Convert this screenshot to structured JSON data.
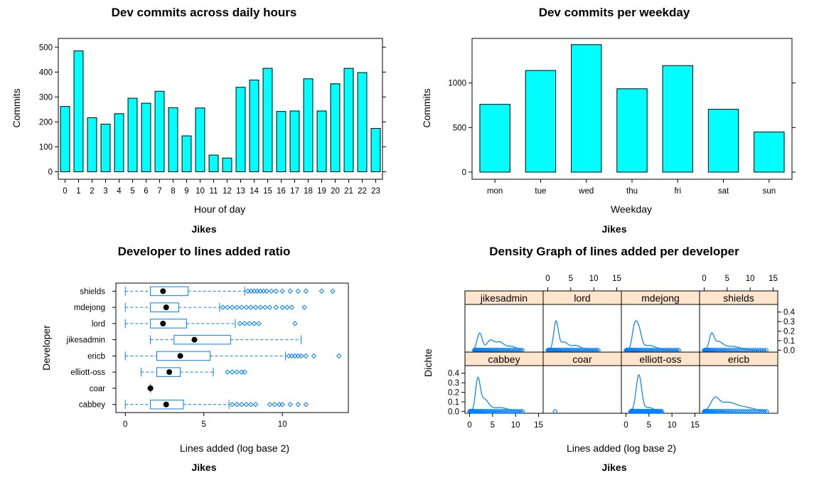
{
  "chart_data": [
    {
      "type": "bar",
      "title": "Dev commits across daily hours",
      "xlabel": "Hour of day",
      "ylabel": "Commits",
      "subtitle": "Jikes",
      "categories": [
        "0",
        "1",
        "2",
        "3",
        "4",
        "5",
        "6",
        "7",
        "8",
        "9",
        "10",
        "11",
        "12",
        "13",
        "14",
        "15",
        "16",
        "17",
        "18",
        "19",
        "20",
        "21",
        "22",
        "23"
      ],
      "values": [
        262,
        485,
        217,
        191,
        233,
        295,
        275,
        323,
        257,
        144,
        256,
        67,
        55,
        339,
        368,
        415,
        242,
        244,
        373,
        244,
        353,
        415,
        398,
        174
      ],
      "yticks": [
        0,
        100,
        200,
        300,
        400,
        500
      ],
      "ylim": [
        -30,
        535
      ],
      "color": "#00ffff"
    },
    {
      "type": "bar",
      "title": "Dev commits per weekday",
      "xlabel": "Weekday",
      "ylabel": "Commits",
      "subtitle": "Jikes",
      "categories": [
        "mon",
        "tue",
        "wed",
        "thu",
        "fri",
        "sat",
        "sun"
      ],
      "values": [
        760,
        1140,
        1430,
        935,
        1195,
        705,
        450
      ],
      "yticks": [
        0,
        500,
        1000
      ],
      "ylim": [
        -80,
        1500
      ],
      "color": "#00ffff"
    },
    {
      "type": "box",
      "title": "Developer to lines added ratio",
      "xlabel": "Lines added (log base 2)",
      "ylabel": "Developer",
      "subtitle": "Jikes",
      "xticks": [
        0,
        5,
        10
      ],
      "xlim": [
        -0.6,
        14.2
      ],
      "color": "#0080ff",
      "series": [
        {
          "name": "shields",
          "whisker_low": 0,
          "q1": 1.6,
          "median": 2.4,
          "q3": 4.0,
          "whisker_high": 7.6,
          "outliers": [
            7.8,
            8.0,
            8.2,
            8.4,
            8.6,
            8.8,
            9.0,
            9.3,
            9.6,
            10.0,
            10.5,
            11.0,
            11.5,
            12.5,
            13.2
          ]
        },
        {
          "name": "mdejong",
          "whisker_low": 0,
          "q1": 1.6,
          "median": 2.6,
          "q3": 3.4,
          "whisker_high": 6.0,
          "outliers": [
            6.2,
            6.5,
            6.8,
            7.1,
            7.4,
            7.7,
            8.0,
            8.3,
            8.6,
            8.9,
            9.2,
            9.6,
            10.0,
            10.3,
            10.6,
            11.4
          ]
        },
        {
          "name": "lord",
          "whisker_low": 0,
          "q1": 1.6,
          "median": 2.4,
          "q3": 3.9,
          "whisker_high": 7.0,
          "outliers": [
            7.3,
            7.6,
            7.9,
            8.2,
            8.5,
            10.8
          ]
        },
        {
          "name": "jikesadmin",
          "whisker_low": 1.6,
          "q1": 3.1,
          "median": 4.4,
          "q3": 6.7,
          "whisker_high": 11.2,
          "outliers": []
        },
        {
          "name": "ericb",
          "whisker_low": 0,
          "q1": 2.0,
          "median": 3.5,
          "q3": 5.4,
          "whisker_high": 10.2,
          "outliers": [
            10.4,
            10.6,
            10.8,
            11.0,
            11.2,
            11.5,
            12.0,
            13.6
          ]
        },
        {
          "name": "elliott-oss",
          "whisker_low": 1.0,
          "q1": 2.0,
          "median": 2.8,
          "q3": 3.5,
          "whisker_high": 5.6,
          "outliers": [
            6.5,
            6.8,
            7.1,
            7.4,
            7.6
          ]
        },
        {
          "name": "coar",
          "whisker_low": 1.6,
          "q1": 1.6,
          "median": 1.6,
          "q3": 1.6,
          "whisker_high": 1.6,
          "outliers": []
        },
        {
          "name": "cabbey",
          "whisker_low": 0,
          "q1": 1.6,
          "median": 2.6,
          "q3": 3.7,
          "whisker_high": 6.6,
          "outliers": [
            6.8,
            7.1,
            7.4,
            7.7,
            8.0,
            8.3,
            9.2,
            9.5,
            9.8,
            10.0,
            10.5,
            11.0,
            11.5
          ]
        }
      ]
    },
    {
      "type": "density",
      "title": "Density Graph of lines added per developer",
      "xlabel": "Lines added (log base 2)",
      "ylabel": "Dichte",
      "subtitle": "Jikes",
      "xticks": [
        0,
        5,
        10,
        15
      ],
      "yticks": [
        0.0,
        0.1,
        0.2,
        0.3,
        0.4
      ],
      "xlim": [
        -1,
        16
      ],
      "ylim": [
        -0.02,
        0.48
      ],
      "strip_color": "#ffe5cc",
      "color": "#0080ff",
      "panels": [
        {
          "name": "jikesadmin",
          "peaks": [
            [
              2.2,
              0.18,
              0.55
            ],
            [
              4.5,
              0.1,
              0.8
            ],
            [
              6.5,
              0.08,
              0.9
            ],
            [
              9.0,
              0.04,
              1.2
            ]
          ],
          "range": [
            1.0,
            11.5
          ]
        },
        {
          "name": "lord",
          "peaks": [
            [
              1.8,
              0.3,
              0.5
            ],
            [
              3.5,
              0.08,
              0.8
            ],
            [
              6.0,
              0.05,
              1.2
            ]
          ],
          "range": [
            0,
            11
          ]
        },
        {
          "name": "mdejong",
          "peaks": [
            [
              1.8,
              0.2,
              0.5
            ],
            [
              2.7,
              0.22,
              0.6
            ],
            [
              5.0,
              0.05,
              1.5
            ]
          ],
          "range": [
            0,
            11.5
          ]
        },
        {
          "name": "shields",
          "peaks": [
            [
              1.6,
              0.15,
              0.5
            ],
            [
              3.0,
              0.08,
              1.0
            ],
            [
              6.0,
              0.04,
              1.8
            ]
          ],
          "range": [
            0,
            13.5
          ]
        },
        {
          "name": "cabbey",
          "peaks": [
            [
              1.8,
              0.32,
              0.5
            ],
            [
              3.2,
              0.12,
              0.9
            ],
            [
              6.5,
              0.04,
              1.8
            ]
          ],
          "range": [
            0,
            11.5
          ]
        },
        {
          "name": "coar",
          "peaks": [],
          "range": [
            1.6,
            1.6
          ]
        },
        {
          "name": "elliott-oss",
          "peaks": [
            [
              2.8,
              0.38,
              0.6
            ],
            [
              5.0,
              0.04,
              1.0
            ]
          ],
          "range": [
            1.0,
            7.8
          ]
        },
        {
          "name": "ericb",
          "peaks": [
            [
              2.3,
              0.12,
              0.9
            ],
            [
              5.0,
              0.09,
              1.8
            ],
            [
              9.0,
              0.04,
              2.0
            ]
          ],
          "range": [
            0,
            13.6
          ]
        }
      ]
    }
  ]
}
